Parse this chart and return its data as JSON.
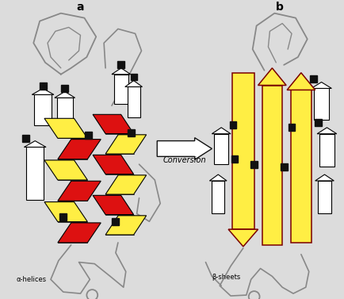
{
  "bg_color": "#dcdcdc",
  "title_a": "a",
  "title_b": "b",
  "conversion_text": "Conversion",
  "label_a": "α-helices",
  "label_b": "β-sheets",
  "arrow_color": "#ffffff",
  "arrow_edge": "#000000",
  "helix_red": "#dd1111",
  "helix_yellow": "#ffee44",
  "sheet_yellow": "#ffee44",
  "sheet_edge": "#7a0000",
  "loop_color": "#888888",
  "black_col": "#111111",
  "white_col": "#ffffff",
  "figsize": [
    4.34,
    3.77
  ],
  "dpi": 100
}
